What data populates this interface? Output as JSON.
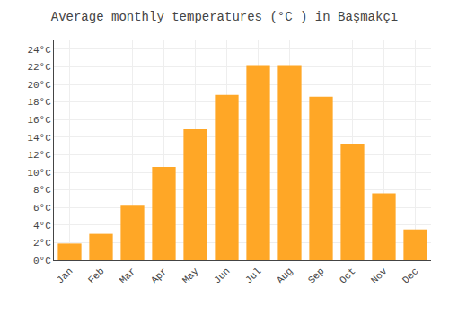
{
  "chart_data": {
    "type": "bar",
    "title": "Average monthly temperatures (°C ) in Başmakçı",
    "categories": [
      "Jan",
      "Feb",
      "Mar",
      "Apr",
      "May",
      "Jun",
      "Jul",
      "Aug",
      "Sep",
      "Oct",
      "Nov",
      "Dec"
    ],
    "values": [
      1.9,
      3.0,
      6.2,
      10.6,
      14.9,
      18.8,
      22.1,
      22.1,
      18.6,
      13.2,
      7.6,
      3.5
    ],
    "color": "#FFA726",
    "ylim": [
      0,
      25
    ],
    "yticks": [
      {
        "value": 0,
        "label": "0°C"
      },
      {
        "value": 2,
        "label": "2°C"
      },
      {
        "value": 4,
        "label": "4°C"
      },
      {
        "value": 6,
        "label": "6°C"
      },
      {
        "value": 8,
        "label": "8°C"
      },
      {
        "value": 10,
        "label": "10°C"
      },
      {
        "value": 12,
        "label": "12°C"
      },
      {
        "value": 14,
        "label": "14°C"
      },
      {
        "value": 16,
        "label": "16°C"
      },
      {
        "value": 18,
        "label": "18°C"
      },
      {
        "value": 20,
        "label": "20°C"
      },
      {
        "value": 22,
        "label": "22°C"
      },
      {
        "value": 24,
        "label": "24°C"
      }
    ],
    "grid": true
  }
}
